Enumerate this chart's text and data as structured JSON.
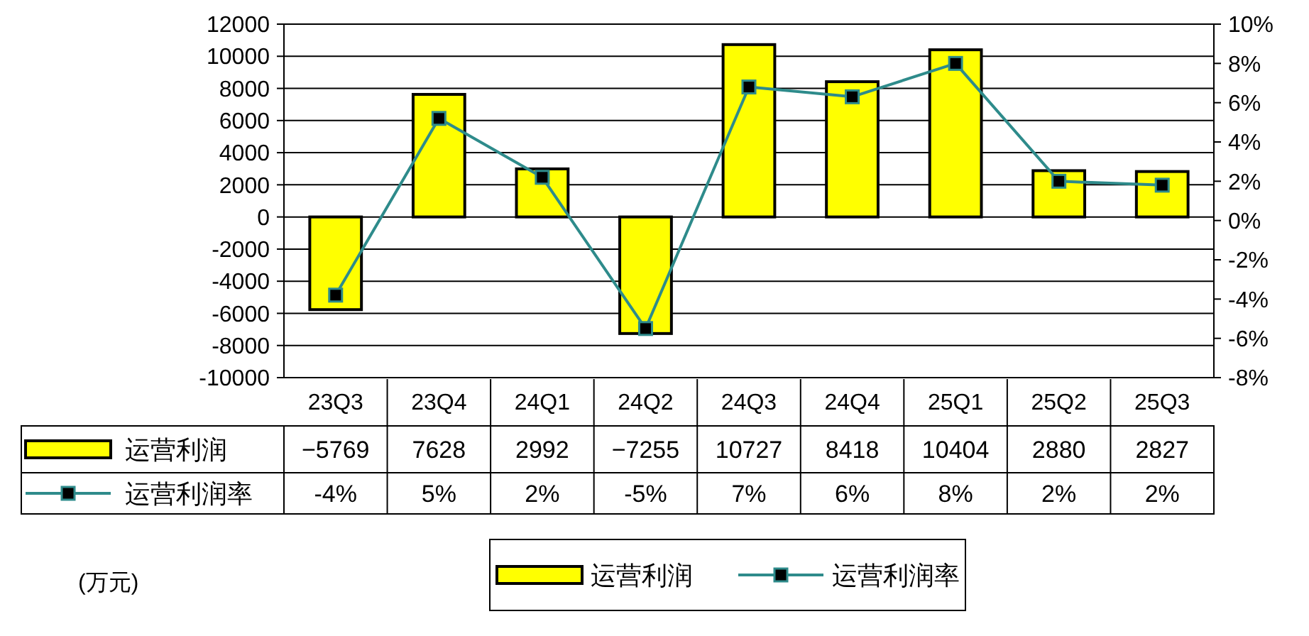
{
  "chart_data": {
    "type": "bar",
    "categories": [
      "23Q3",
      "23Q4",
      "24Q1",
      "24Q2",
      "24Q3",
      "24Q4",
      "25Q1",
      "25Q2",
      "25Q3"
    ],
    "ylim": [
      -10000,
      12000
    ],
    "yticks": [
      -10000,
      -8000,
      -6000,
      -4000,
      -2000,
      0,
      2000,
      4000,
      6000,
      8000,
      10000,
      12000
    ],
    "y2lim": [
      -8,
      10
    ],
    "y2ticks": [
      {
        "value": -8,
        "label": "-8%"
      },
      {
        "value": -6,
        "label": "-6%"
      },
      {
        "value": -4,
        "label": "-4%"
      },
      {
        "value": -2,
        "label": "-2%"
      },
      {
        "value": 0,
        "label": "0%"
      },
      {
        "value": 2,
        "label": "2%"
      },
      {
        "value": 4,
        "label": "4%"
      },
      {
        "value": 6,
        "label": "6%"
      },
      {
        "value": 8,
        "label": "8%"
      },
      {
        "value": 10,
        "label": "10%"
      }
    ],
    "grid": "y",
    "legend": "bottom",
    "data_labels": true,
    "marker": "square",
    "annotations": [
      "(万元)"
    ],
    "series": [
      {
        "name": "运营利润",
        "color": "#ffff00",
        "values": [
          -5769,
          7628,
          2992,
          -7255,
          10727,
          8418,
          10404,
          2880,
          2827
        ]
      },
      {
        "name": "运营利润率",
        "type": "line",
        "axis": "y2",
        "color": "#2e8b8b",
        "values": [
          -3.8,
          5.2,
          2.2,
          -5.5,
          6.8,
          6.3,
          8.0,
          2.0,
          1.8
        ],
        "value_labels": [
          "-4%",
          "5%",
          "2%",
          "-5%",
          "7%",
          "6%",
          "8%",
          "2%",
          "2%"
        ]
      }
    ]
  }
}
